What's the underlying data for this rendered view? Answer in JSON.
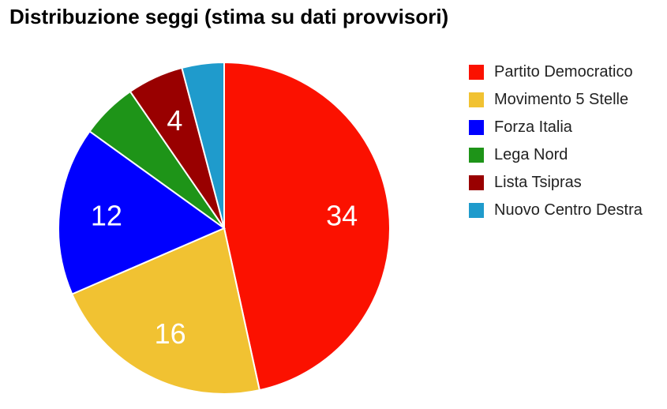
{
  "chart_data": {
    "type": "pie",
    "title": "Distribuzione seggi (stima su dati provvisori)",
    "legend_position": "right",
    "slices": [
      {
        "name": "Partito Democratico",
        "value": 34,
        "color": "#FB1100",
        "label": "34"
      },
      {
        "name": "Movimento 5 Stelle",
        "value": 16,
        "color": "#F1C232",
        "label": "16"
      },
      {
        "name": "Forza Italia",
        "value": 12,
        "color": "#0000FF",
        "label": "12"
      },
      {
        "name": "Lega Nord",
        "value": 4,
        "color": "#1E9418",
        "label": ""
      },
      {
        "name": "Lista Tsipras",
        "value": 4,
        "color": "#990000",
        "label": "4"
      },
      {
        "name": "Nuovo Centro Destra",
        "value": 3,
        "color": "#1F9BCC",
        "label": ""
      }
    ]
  }
}
